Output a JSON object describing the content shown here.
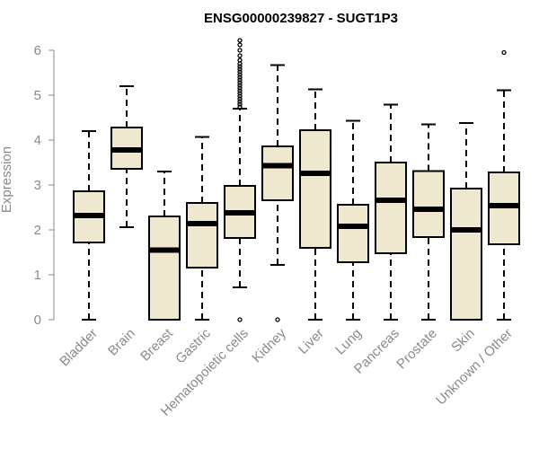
{
  "chart_data": {
    "type": "box",
    "title": "ENSG00000239827 - SUGT1P3",
    "xlabel": "",
    "ylabel": "Expression",
    "ylim": [
      0,
      6
    ],
    "yticks": [
      "0",
      "1",
      "2",
      "3",
      "4",
      "5",
      "6"
    ],
    "categories": [
      "Bladder",
      "Brain",
      "Breast",
      "Gastric",
      "Hematopoietic cells",
      "Kidney",
      "Liver",
      "Lung",
      "Pancreas",
      "Prostate",
      "Skin",
      "Unknown / Other"
    ],
    "boxes": [
      {
        "min": 0,
        "q1": 1.72,
        "median": 2.32,
        "q3": 2.86,
        "max": 4.2,
        "outliers": []
      },
      {
        "min": 2.06,
        "q1": 3.36,
        "median": 3.78,
        "q3": 4.28,
        "max": 5.2,
        "outliers": []
      },
      {
        "min": 0,
        "q1": 0,
        "median": 1.55,
        "q3": 2.3,
        "max": 3.3,
        "outliers": []
      },
      {
        "min": 0,
        "q1": 1.16,
        "median": 2.14,
        "q3": 2.6,
        "max": 4.07,
        "outliers": []
      },
      {
        "min": 0.72,
        "q1": 1.82,
        "median": 2.38,
        "q3": 2.98,
        "max": 4.7,
        "outliers": [
          0,
          4.74,
          4.8,
          4.86,
          4.92,
          4.98,
          5.04,
          5.1,
          5.16,
          5.22,
          5.28,
          5.34,
          5.4,
          5.46,
          5.52,
          5.58,
          5.64,
          5.7,
          5.78,
          5.88,
          6.0,
          6.12,
          6.22
        ]
      },
      {
        "min": 1.22,
        "q1": 2.66,
        "median": 3.43,
        "q3": 3.86,
        "max": 5.67,
        "outliers": [
          0
        ]
      },
      {
        "min": 0,
        "q1": 1.6,
        "median": 3.26,
        "q3": 4.22,
        "max": 5.13,
        "outliers": []
      },
      {
        "min": 0,
        "q1": 1.28,
        "median": 2.08,
        "q3": 2.56,
        "max": 4.43,
        "outliers": []
      },
      {
        "min": 0,
        "q1": 1.48,
        "median": 2.66,
        "q3": 3.5,
        "max": 4.79,
        "outliers": []
      },
      {
        "min": 0,
        "q1": 1.84,
        "median": 2.46,
        "q3": 3.31,
        "max": 4.35,
        "outliers": []
      },
      {
        "min": 0,
        "q1": 0,
        "median": 2.0,
        "q3": 2.92,
        "max": 4.38,
        "outliers": []
      },
      {
        "min": 0,
        "q1": 1.68,
        "median": 2.54,
        "q3": 3.28,
        "max": 5.11,
        "outliers": [
          5.95
        ]
      }
    ],
    "colors": {
      "box_fill": "#eee8d0",
      "stroke": "#000000",
      "axis": "#8a8a8a",
      "text": "#8a8a8a",
      "title": "#000000"
    }
  }
}
